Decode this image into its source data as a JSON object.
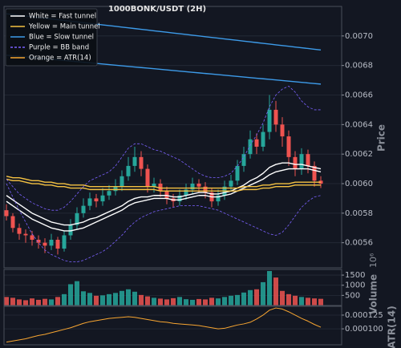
{
  "chart_data": [
    {
      "type": "candlestick",
      "title": "1000BONK/USDT (2H)",
      "y_label": "Price",
      "open": [
        0.00582,
        0.00578,
        0.0057,
        0.00566,
        0.00565,
        0.00562,
        0.0056,
        0.00558,
        0.00562,
        0.00556,
        0.00565,
        0.00572,
        0.0058,
        0.00585,
        0.0059,
        0.00588,
        0.00592,
        0.00595,
        0.00598,
        0.00605,
        0.00612,
        0.00618,
        0.0061,
        0.00598,
        0.006,
        0.00595,
        0.0059,
        0.00588,
        0.00592,
        0.00596,
        0.006,
        0.00598,
        0.00594,
        0.00588,
        0.00592,
        0.00598,
        0.00602,
        0.00612,
        0.0062,
        0.0063,
        0.00625,
        0.00635,
        0.0065,
        0.0064,
        0.00632,
        0.00618,
        0.0061,
        0.0062,
        0.00612,
        0.00602
      ],
      "high": [
        0.00586,
        0.0058,
        0.00573,
        0.00569,
        0.00568,
        0.00565,
        0.00563,
        0.00566,
        0.00564,
        0.00568,
        0.00576,
        0.00584,
        0.0059,
        0.00594,
        0.00593,
        0.00597,
        0.00599,
        0.00603,
        0.00609,
        0.00618,
        0.00625,
        0.00622,
        0.00613,
        0.00604,
        0.00603,
        0.00598,
        0.00593,
        0.00596,
        0.006,
        0.00604,
        0.00603,
        0.00601,
        0.00597,
        0.00596,
        0.00602,
        0.00606,
        0.00616,
        0.00625,
        0.00636,
        0.00634,
        0.0064,
        0.0066,
        0.00656,
        0.00645,
        0.00636,
        0.00622,
        0.00624,
        0.00623,
        0.00615,
        0.00605
      ],
      "low": [
        0.00575,
        0.00567,
        0.00562,
        0.0056,
        0.00558,
        0.00556,
        0.00553,
        0.00555,
        0.00552,
        0.00554,
        0.00562,
        0.00569,
        0.00577,
        0.00582,
        0.00584,
        0.00585,
        0.00589,
        0.00592,
        0.00595,
        0.00602,
        0.00608,
        0.00605,
        0.00594,
        0.00594,
        0.00591,
        0.00586,
        0.00584,
        0.00585,
        0.00589,
        0.00593,
        0.00594,
        0.0059,
        0.00584,
        0.00585,
        0.00589,
        0.00595,
        0.00599,
        0.00608,
        0.00617,
        0.0062,
        0.00622,
        0.0063,
        0.00635,
        0.00625,
        0.00612,
        0.00605,
        0.00606,
        0.00607,
        0.00598,
        0.00597
      ],
      "close": [
        0.00578,
        0.0057,
        0.00566,
        0.00565,
        0.00562,
        0.0056,
        0.00558,
        0.00562,
        0.00556,
        0.00565,
        0.00572,
        0.0058,
        0.00585,
        0.0059,
        0.00588,
        0.00592,
        0.00595,
        0.00598,
        0.00605,
        0.00612,
        0.00618,
        0.0061,
        0.00598,
        0.006,
        0.00595,
        0.0059,
        0.00588,
        0.00592,
        0.00596,
        0.006,
        0.00598,
        0.00594,
        0.00588,
        0.00592,
        0.00598,
        0.00602,
        0.00612,
        0.0062,
        0.0063,
        0.00625,
        0.00635,
        0.0065,
        0.0064,
        0.00632,
        0.00618,
        0.0061,
        0.0062,
        0.00612,
        0.00602,
        0.006
      ],
      "up_color": "#26a69a",
      "down_color": "#ef5350",
      "series": [
        {
          "name": "White = Fast tunnel",
          "color": "#ffffff",
          "lines": [
            [
              0.00592,
              0.00589,
              0.00586,
              0.00583,
              0.0058,
              0.00578,
              0.00576,
              0.00574,
              0.00573,
              0.00572,
              0.00572,
              0.00573,
              0.00574,
              0.00576,
              0.00577,
              0.00579,
              0.00581,
              0.00583,
              0.00585,
              0.00588,
              0.0059,
              0.00591,
              0.00591,
              0.00592,
              0.00592,
              0.00592,
              0.00591,
              0.00591,
              0.00592,
              0.00593,
              0.00594,
              0.00594,
              0.00593,
              0.00593,
              0.00594,
              0.00595,
              0.00597,
              0.00599,
              0.00602,
              0.00604,
              0.00607,
              0.00611,
              0.00613,
              0.00614,
              0.00614,
              0.00613,
              0.00613,
              0.00612,
              0.00611,
              0.0061
            ],
            [
              0.00588,
              0.00585,
              0.00582,
              0.00579,
              0.00576,
              0.00574,
              0.00572,
              0.0057,
              0.00569,
              0.00568,
              0.00568,
              0.00569,
              0.0057,
              0.00572,
              0.00574,
              0.00576,
              0.00578,
              0.0058,
              0.00582,
              0.00585,
              0.00587,
              0.00588,
              0.00589,
              0.0059,
              0.0059,
              0.0059,
              0.00589,
              0.00589,
              0.0059,
              0.00591,
              0.00592,
              0.00592,
              0.00591,
              0.00591,
              0.00592,
              0.00593,
              0.00595,
              0.00597,
              0.00599,
              0.00601,
              0.00603,
              0.00606,
              0.00608,
              0.00609,
              0.0061,
              0.0061,
              0.0061,
              0.0061,
              0.00609,
              0.00608
            ]
          ]
        },
        {
          "name": "Yellow = Main tunnel",
          "color": "#f5c242",
          "lines": [
            [
              0.00605,
              0.00604,
              0.00604,
              0.00603,
              0.00602,
              0.00602,
              0.00601,
              0.00601,
              0.006,
              0.006,
              0.00599,
              0.00599,
              0.00599,
              0.00598,
              0.00598,
              0.00598,
              0.00598,
              0.00598,
              0.00598,
              0.00598,
              0.00598,
              0.00598,
              0.00598,
              0.00598,
              0.00597,
              0.00597,
              0.00597,
              0.00597,
              0.00597,
              0.00597,
              0.00597,
              0.00597,
              0.00597,
              0.00597,
              0.00597,
              0.00597,
              0.00597,
              0.00598,
              0.00598,
              0.00598,
              0.00599,
              0.00599,
              0.006,
              0.006,
              0.006,
              0.00601,
              0.00601,
              0.00601,
              0.00601,
              0.00601
            ],
            [
              0.00603,
              0.00602,
              0.00602,
              0.00601,
              0.006,
              0.006,
              0.00599,
              0.00599,
              0.00598,
              0.00598,
              0.00597,
              0.00597,
              0.00597,
              0.00596,
              0.00596,
              0.00596,
              0.00596,
              0.00596,
              0.00596,
              0.00596,
              0.00596,
              0.00596,
              0.00596,
              0.00596,
              0.00595,
              0.00595,
              0.00595,
              0.00595,
              0.00595,
              0.00595,
              0.00595,
              0.00595,
              0.00595,
              0.00595,
              0.00595,
              0.00595,
              0.00595,
              0.00596,
              0.00596,
              0.00596,
              0.00597,
              0.00597,
              0.00598,
              0.00598,
              0.00598,
              0.00599,
              0.00599,
              0.00599,
              0.00599,
              0.00599
            ]
          ]
        },
        {
          "name": "Blue = Slow tunnel",
          "color": "#3d9be9",
          "lines": [
            [
              0.00715,
              0.007145,
              0.00714,
              0.007135,
              0.00713,
              0.007125,
              0.00712,
              0.007115,
              0.00711,
              0.007105,
              0.0071,
              0.007095,
              0.00709,
              0.007085,
              0.00708,
              0.007075,
              0.00707,
              0.007065,
              0.00706,
              0.007055,
              0.00705,
              0.007045,
              0.00704,
              0.007035,
              0.00703,
              0.007025,
              0.00702,
              0.007015,
              0.00701,
              0.007005,
              0.007,
              0.006995,
              0.00699,
              0.006985,
              0.00698,
              0.006975,
              0.00697,
              0.006965,
              0.00696,
              0.006955,
              0.00695,
              0.006945,
              0.00694,
              0.006935,
              0.00693,
              0.006925,
              0.00692,
              0.006915,
              0.00691,
              0.006905
            ],
            [
              0.00687,
              0.006866,
              0.006862,
              0.006858,
              0.006854,
              0.00685,
              0.006846,
              0.006842,
              0.006838,
              0.006834,
              0.00683,
              0.006826,
              0.006822,
              0.006818,
              0.006814,
              0.00681,
              0.006806,
              0.006802,
              0.006798,
              0.006794,
              0.00679,
              0.006786,
              0.006782,
              0.006778,
              0.006774,
              0.00677,
              0.006766,
              0.006762,
              0.006758,
              0.006754,
              0.00675,
              0.006746,
              0.006742,
              0.006738,
              0.006734,
              0.00673,
              0.006726,
              0.006722,
              0.006718,
              0.006714,
              0.00671,
              0.006706,
              0.006702,
              0.006698,
              0.006694,
              0.00669,
              0.006686,
              0.006682,
              0.006678,
              0.006674
            ]
          ]
        },
        {
          "name": "Purple = BB band",
          "color": "#7b61ff",
          "dashed": true,
          "lines": [
            [
              0.00603,
              0.00598,
              0.00593,
              0.0059,
              0.00587,
              0.00585,
              0.00583,
              0.00582,
              0.00582,
              0.00584,
              0.00588,
              0.00593,
              0.00598,
              0.00602,
              0.00604,
              0.00606,
              0.00608,
              0.00612,
              0.00618,
              0.00624,
              0.00627,
              0.00627,
              0.00625,
              0.00623,
              0.00622,
              0.0062,
              0.00618,
              0.00616,
              0.00613,
              0.0061,
              0.00607,
              0.00605,
              0.00604,
              0.00604,
              0.00605,
              0.00607,
              0.00612,
              0.00618,
              0.00626,
              0.00633,
              0.00641,
              0.00652,
              0.0066,
              0.00664,
              0.00666,
              0.00662,
              0.00656,
              0.00652,
              0.0065,
              0.0065
            ],
            [
              0.006,
              0.00591,
              0.00582,
              0.00574,
              0.00566,
              0.0056,
              0.00555,
              0.00552,
              0.0055,
              0.00548,
              0.00547,
              0.00547,
              0.00548,
              0.0055,
              0.00552,
              0.00554,
              0.00557,
              0.00561,
              0.00565,
              0.0057,
              0.00574,
              0.00577,
              0.00579,
              0.00581,
              0.00582,
              0.00583,
              0.00584,
              0.00585,
              0.00585,
              0.00585,
              0.00585,
              0.00584,
              0.00583,
              0.00582,
              0.0058,
              0.00578,
              0.00576,
              0.00574,
              0.00572,
              0.0057,
              0.00568,
              0.00566,
              0.00565,
              0.00567,
              0.00572,
              0.00578,
              0.00584,
              0.00588,
              0.00591,
              0.00592
            ]
          ]
        }
      ],
      "ylim": [
        0.00543,
        0.0072
      ],
      "yticks": [
        0.0056,
        0.0058,
        {
          "value": 0.006,
          "label": "0.0060"
        },
        0.0062,
        0.0064,
        0.0066,
        0.0068,
        {
          "value": 0.007,
          "label": "0.0070"
        }
      ],
      "grid": true,
      "legend": "upper left"
    },
    {
      "type": "bar",
      "y_label": "Volume",
      "offset_label": "10⁶",
      "values": [
        420,
        380,
        300,
        260,
        350,
        280,
        330,
        300,
        420,
        560,
        1050,
        1200,
        700,
        620,
        480,
        500,
        560,
        620,
        720,
        800,
        680,
        520,
        450,
        380,
        340,
        300,
        360,
        420,
        310,
        280,
        320,
        300,
        380,
        350,
        420,
        480,
        520,
        640,
        760,
        800,
        1150,
        1700,
        1380,
        720,
        560,
        480,
        420,
        380,
        350,
        330
      ],
      "ylim": [
        0,
        1780
      ],
      "yticks": [
        500,
        1000,
        1500
      ],
      "grid": true
    },
    {
      "type": "line",
      "y_label": "ATR(14)",
      "series": [
        {
          "name": "Orange = ATR(14)",
          "color": "#f7a531",
          "values": [
            7.6e-05,
            7.8e-05,
            8e-05,
            8.2e-05,
            8.5e-05,
            8.8e-05,
            9e-05,
            9.3e-05,
            9.6e-05,
            9.9e-05,
            0.000102,
            0.000106,
            0.00011,
            0.000113,
            0.000115,
            0.000117,
            0.000119,
            0.00012,
            0.000121,
            0.000122,
            0.000121,
            0.000119,
            0.000117,
            0.000115,
            0.000113,
            0.000112,
            0.00011,
            0.000109,
            0.000108,
            0.000107,
            0.000106,
            0.000104,
            0.000102,
            0.0001,
            0.000101,
            0.000104,
            0.000107,
            0.000109,
            0.000112,
            0.000118,
            0.000125,
            0.000134,
            0.000138,
            0.000136,
            0.000131,
            0.000125,
            0.000119,
            0.000114,
            0.000108,
            0.000103
          ]
        }
      ],
      "ylim": [
        7.1e-05,
        0.000141
      ],
      "yticks": [
        {
          "value": 0.0001,
          "label": "0.000100"
        },
        {
          "value": 0.000125,
          "label": "0.000125"
        }
      ],
      "grid": true
    }
  ]
}
